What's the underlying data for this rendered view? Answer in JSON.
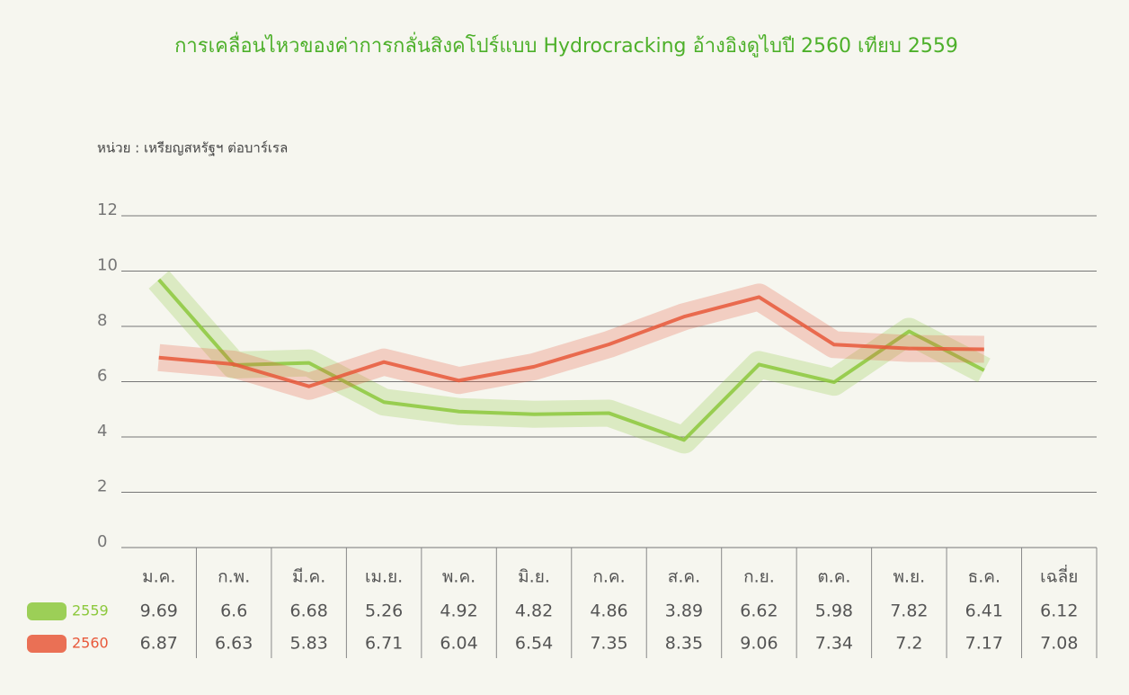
{
  "chart_data": {
    "type": "line",
    "title": "การเคลื่อนไหวของค่าการกลั่นสิงคโปร์แบบ Hydrocracking อ้างอิงดูไบปี 2560 เทียบ 2559",
    "unit_label": "หน่วย : เหรียญสหรัฐฯ ต่อบาร์เรล",
    "categories": [
      "ม.ค.",
      "ก.พ.",
      "มี.ค.",
      "เม.ย.",
      "พ.ค.",
      "มิ.ย.",
      "ก.ค.",
      "ส.ค.",
      "ก.ย.",
      "ต.ค.",
      "พ.ย.",
      "ธ.ค."
    ],
    "average_label": "เฉลี่ย",
    "series": [
      {
        "name": "2559",
        "color": "#8cc83c",
        "values": [
          9.69,
          6.6,
          6.68,
          5.26,
          4.92,
          4.82,
          4.86,
          3.89,
          6.62,
          5.98,
          7.82,
          6.41
        ],
        "average": 6.12
      },
      {
        "name": "2560",
        "color": "#e8583a",
        "values": [
          6.87,
          6.63,
          5.83,
          6.71,
          6.04,
          6.54,
          7.35,
          8.35,
          9.06,
          7.34,
          7.2,
          7.17
        ],
        "average": 7.08
      }
    ],
    "ylim": [
      0,
      12
    ],
    "yticks": [
      0,
      2,
      4,
      6,
      8,
      10,
      12
    ],
    "grid": true
  }
}
